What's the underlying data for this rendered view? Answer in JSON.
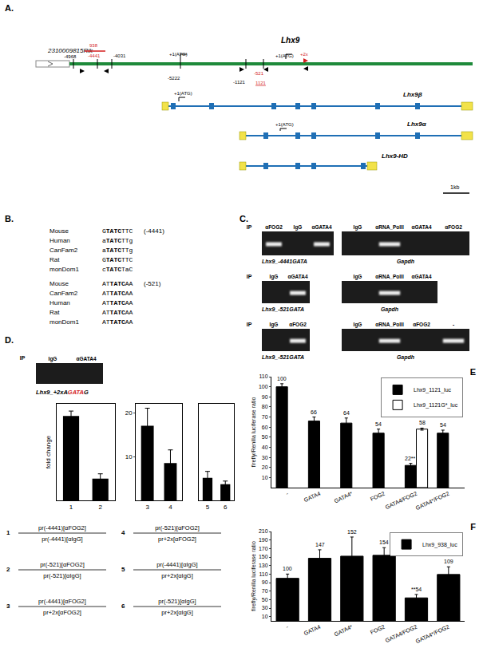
{
  "figure": {
    "panel_labels": {
      "A": "A.",
      "B": "B.",
      "C": "C.",
      "D": "D.",
      "E": "E",
      "F": "F"
    },
    "gene_map": {
      "upstream_gene": "2310009815Rik",
      "gene": "Lhx9",
      "marks": {
        "m4968": "-4968",
        "m938": "938",
        "m4441": "-4441",
        "m4031": "-4031",
        "atg1": "+1(ATG)",
        "m5222": "-5222",
        "m1121": "-1121",
        "m521": "-521",
        "p1121": "1121",
        "atg2": "+1(ATG)",
        "p2x": "+2x"
      },
      "transcripts": [
        {
          "name": "Lhx9β",
          "atg": "+1(ATG)"
        },
        {
          "name": "Lhx9α",
          "atg": "+1(ATG)"
        },
        {
          "name": "Lhx9-HD"
        }
      ],
      "scale": "1kb"
    },
    "alignments": [
      {
        "site": "(-4441)",
        "rows": [
          {
            "species": "Mouse",
            "seq": [
              "G",
              "TATC",
              "TTC"
            ]
          },
          {
            "species": "Human",
            "seq": [
              "a",
              "TATC",
              "TTg"
            ]
          },
          {
            "species": "CanFam2",
            "seq": [
              "a",
              "TATC",
              "TTg"
            ]
          },
          {
            "species": "Rat",
            "seq": [
              "G",
              "TATC",
              "TTC"
            ]
          },
          {
            "species": "monDom1",
            "seq": [
              "c",
              "TATC",
              "TaC"
            ]
          }
        ]
      },
      {
        "site": "(-521)",
        "rows": [
          {
            "species": "Mouse",
            "seq": [
              "AT",
              "TATC",
              "AA"
            ]
          },
          {
            "species": "CanFam2",
            "seq": [
              "AT",
              "TATC",
              "AA"
            ]
          },
          {
            "species": "Human",
            "seq": [
              "AT",
              "TATC",
              "AA"
            ]
          },
          {
            "species": "Rat",
            "seq": [
              "AT",
              "TATC",
              "AA"
            ]
          },
          {
            "species": "monDom1",
            "seq": [
              "AT",
              "TATC",
              "AA"
            ]
          }
        ]
      }
    ],
    "chip": [
      {
        "ip": "IP",
        "lanes": [
          {
            "label": "αFOG2",
            "band": true
          },
          {
            "label": "IgG",
            "band": false
          },
          {
            "label": "αGATA4",
            "band": true
          }
        ],
        "target": "Lhx9_-4441GATA",
        "control_lanes": [
          {
            "label": "IgG",
            "band": false
          },
          {
            "label": "αRNA_PolII",
            "band": true
          },
          {
            "label": "αGATA4",
            "band": false
          },
          {
            "label": "αFOG2",
            "band": false
          }
        ],
        "control": "Gapdh"
      },
      {
        "ip": "IP",
        "lanes": [
          {
            "label": "IgG",
            "band": false
          },
          {
            "label": "αGATA4",
            "band": true
          }
        ],
        "target": "Lhx9_-521GATA",
        "control_lanes": [
          {
            "label": "IgG",
            "band": false
          },
          {
            "label": "αRNA_PolII",
            "band": true
          },
          {
            "label": "αGATA4",
            "band": false
          }
        ],
        "control": "Gapdh"
      },
      {
        "ip": "IP",
        "lanes": [
          {
            "label": "IgG",
            "band": false
          },
          {
            "label": "αFOG2",
            "band": true
          }
        ],
        "target": "Lhx9_-521GATA",
        "control_lanes": [
          {
            "label": "IgG",
            "band": false
          },
          {
            "label": "αRNA_PolII",
            "band": true
          },
          {
            "label": "αFOG2",
            "band": false
          },
          {
            "label": "-",
            "band": true
          }
        ],
        "control": "Gapdh"
      }
    ],
    "D": {
      "gel": {
        "ip": "IP",
        "lanes": [
          {
            "label": "IgG",
            "band": false
          },
          {
            "label": "αGATA4",
            "band": false
          }
        ],
        "target": [
          "Lhx9_+2xA",
          "GATA",
          "G"
        ]
      },
      "key": [
        {
          "n": "1",
          "num": "pr(-4441)[αFOG2]",
          "den": "pr(-4441)[αIgG]"
        },
        {
          "n": "2",
          "num": "pr(-521)[αFOG2]",
          "den": "pr(-521)[αIgG]"
        },
        {
          "n": "3",
          "num": "pr(-4441)[αFOG2]",
          "den": "pr+2x[αFOG2]"
        },
        {
          "n": "4",
          "num": "pr(-521)[αFOG2]",
          "den": "pr+2x[αFOG2]"
        },
        {
          "n": "5",
          "num": "pr(-4441)[αIgG]",
          "den": "pr+2x[αIgG]"
        },
        {
          "n": "6",
          "num": "pr(-521)[αIgG]",
          "den": "pr+2x[αIgG]"
        }
      ]
    }
  },
  "chart_data": [
    {
      "type": "bar",
      "ylabel": "fold change",
      "categories": [
        "1",
        "2"
      ],
      "values": [
        70,
        18
      ],
      "errors": [
        4,
        4
      ],
      "color": "#000000",
      "ylim": [
        0,
        80
      ],
      "tick_labels": "x"
    },
    {
      "type": "bar",
      "categories": [
        "3",
        "4"
      ],
      "values": [
        17,
        8.5
      ],
      "errors": [
        4,
        3
      ],
      "color": "#000000",
      "ylim": [
        0,
        22
      ],
      "yticks": [
        10,
        20
      ]
    },
    {
      "type": "bar",
      "categories": [
        "5",
        "6"
      ],
      "values": [
        0.35,
        0.25
      ],
      "errors": [
        0.1,
        0.05
      ],
      "color": "#000000",
      "ylim": [
        0,
        1.5
      ],
      "tick_labels": "x"
    },
    {
      "type": "bar",
      "ylabel": "firefly/Renilla luciferase ratio",
      "categories": [
        "-",
        "GATA4",
        "GATA4*",
        "FOG2",
        "GATA4/FOG2",
        "GATA4*/FOG2"
      ],
      "series": [
        {
          "name": "Lhx9_1121_luc",
          "color": "#000000",
          "values": [
            100,
            66,
            64,
            54,
            22,
            54
          ],
          "errors": [
            3,
            4,
            5,
            4,
            2,
            3
          ],
          "value_labels": [
            "100",
            "66",
            "64",
            "54",
            "22**",
            "54"
          ]
        },
        {
          "name": "Lhx9_1121G*_luc",
          "color": "#ffffff",
          "values": [
            null,
            null,
            null,
            null,
            58,
            null
          ],
          "errors": [
            null,
            null,
            null,
            null,
            1,
            null
          ],
          "value_labels": [
            null,
            null,
            null,
            null,
            "58",
            null
          ]
        }
      ],
      "ylim": [
        0,
        110
      ],
      "yticks": [
        10,
        20,
        30,
        40,
        50,
        60,
        70,
        80,
        90,
        100,
        110
      ],
      "legend": "top right",
      "data_labels": true
    },
    {
      "type": "bar",
      "ylabel": "firefly/Renilla luciferase ratio",
      "categories": [
        "-",
        "GATA4",
        "GATA4*",
        "FOG2",
        "GATA4/FOG2",
        "GATA4*/FOG2"
      ],
      "series": [
        {
          "name": "Lhx9_938_luc",
          "color": "#000000",
          "values": [
            100,
            147,
            152,
            154,
            54,
            109
          ],
          "errors": [
            10,
            20,
            45,
            18,
            8,
            18
          ],
          "value_labels": [
            "100",
            "147",
            "152",
            "154",
            "**54",
            "109"
          ]
        }
      ],
      "ylim": [
        0,
        210
      ],
      "yticks": [
        10,
        30,
        50,
        70,
        90,
        110,
        130,
        150,
        170,
        190,
        210
      ],
      "legend": "top right",
      "data_labels": true
    }
  ]
}
